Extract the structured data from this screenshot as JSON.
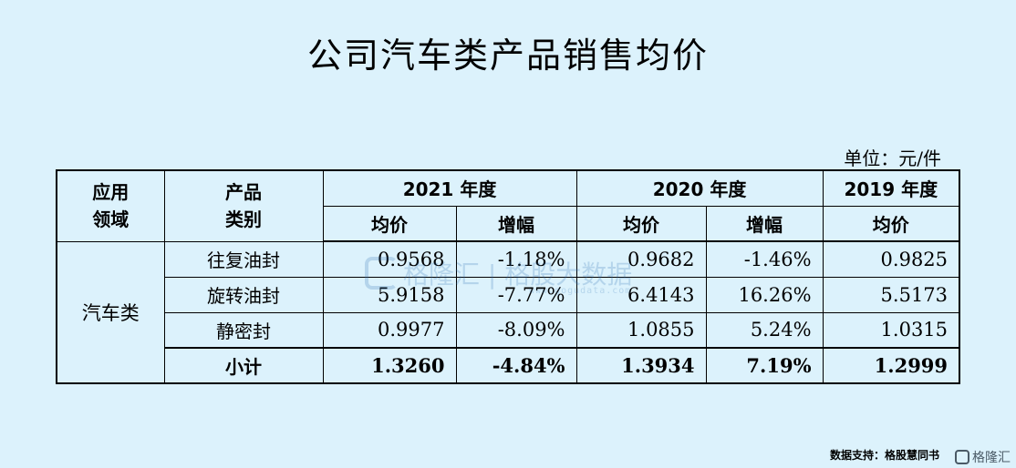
{
  "title": "公司汽车类产品销售均价",
  "unit_label": "单位：元/件",
  "headers": {
    "application": [
      "应用",
      "领域"
    ],
    "category": [
      "产品",
      "类别"
    ],
    "years": [
      "2021 年度",
      "2020 年度",
      "2019 年度"
    ],
    "avg_price": "均价",
    "growth": "增幅"
  },
  "application_value": "汽车类",
  "rows": [
    {
      "category": "往复油封",
      "price_2021": "0.9568",
      "growth_2021": "-1.18%",
      "price_2020": "0.9682",
      "growth_2020": "-1.46%",
      "price_2019": "0.9825"
    },
    {
      "category": "旋转油封",
      "price_2021": "5.9158",
      "growth_2021": "-7.77%",
      "price_2020": "6.4143",
      "growth_2020": "16.26%",
      "price_2019": "5.5173"
    },
    {
      "category": "静密封",
      "price_2021": "0.9977",
      "growth_2021": "-8.09%",
      "price_2020": "1.0855",
      "growth_2020": "5.24%",
      "price_2019": "1.0315"
    }
  ],
  "subtotal": {
    "category": "小计",
    "price_2021": "1.3260",
    "growth_2021": "-4.84%",
    "price_2020": "1.3934",
    "growth_2020": "7.19%",
    "price_2019": "1.2999"
  },
  "watermark": {
    "text": "格隆汇 | 格股大数据",
    "url": "www.gogudata.com"
  },
  "footer": {
    "source": "数据支持：格股慧同书",
    "logo_text": "格隆汇"
  }
}
